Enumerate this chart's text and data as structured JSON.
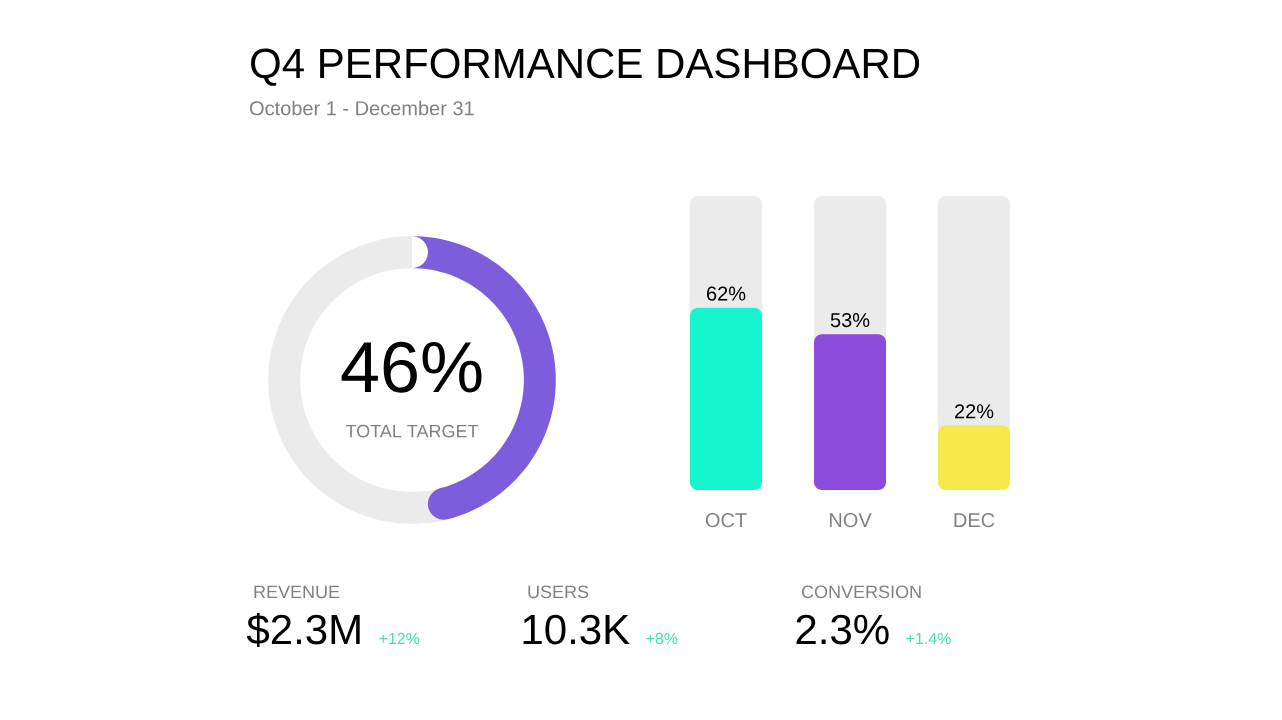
{
  "chart_data": [
    {
      "type": "donut",
      "title": "Q4 PERFORMANCE DASHBOARD",
      "subtitle": "October 1 - December 31",
      "categories": [
        null,
        null
      ],
      "values": [
        46,
        54
      ],
      "colors": [
        "#7d5ddc",
        "#ebebeb"
      ],
      "annotations": [
        "46%",
        "TOTAL TARGET"
      ]
    },
    {
      "type": "bar",
      "categories": [
        "OCT",
        "NOV",
        "DEC"
      ],
      "values": [
        62,
        53,
        22
      ],
      "colors": [
        "#14f5cd",
        "#8d4bdc",
        "#f7e94a"
      ],
      "value_labels": [
        "62%",
        "53%",
        "22%"
      ],
      "ylim": [
        0,
        100
      ],
      "tick_labels": "x"
    },
    {
      "type": "other",
      "annotations": [
        "REVENUE",
        "$2.3M",
        "+12%",
        "USERS",
        "10.3K",
        "+8%",
        "CONVERSION",
        "2.3%",
        "+1.4%"
      ]
    }
  ]
}
